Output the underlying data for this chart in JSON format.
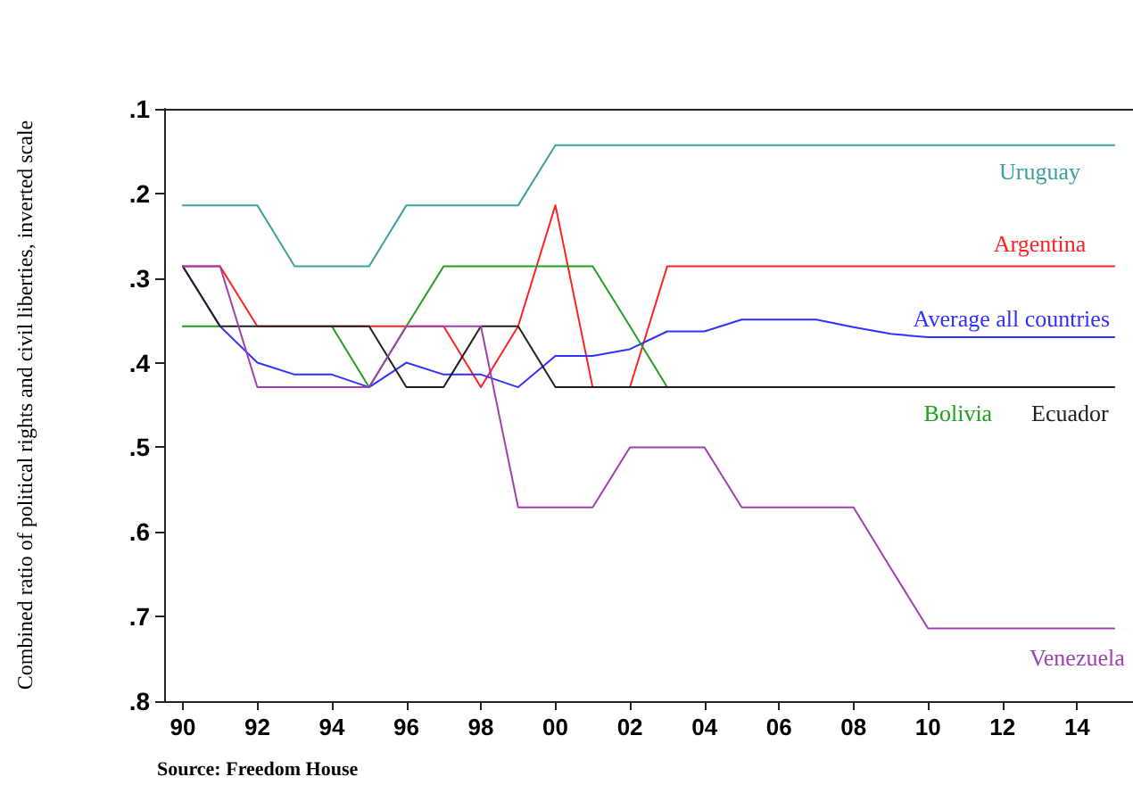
{
  "chart_data": {
    "type": "line",
    "ylabel": "Combined ratio of political rights and civil liberties, inverted scale",
    "annotations": [
      "Source: Freedom House"
    ],
    "x": [
      1990,
      1991,
      1992,
      1993,
      1994,
      1995,
      1996,
      1997,
      1998,
      1999,
      2000,
      2001,
      2002,
      2003,
      2004,
      2005,
      2006,
      2007,
      2008,
      2009,
      2010,
      2011,
      2012,
      2013,
      2014,
      2015
    ],
    "xlim": [
      1989.5,
      2015.5
    ],
    "xticks": [
      {
        "value": 1990,
        "label": "90"
      },
      {
        "value": 1992,
        "label": "92"
      },
      {
        "value": 1994,
        "label": "94"
      },
      {
        "value": 1996,
        "label": "96"
      },
      {
        "value": 1998,
        "label": "98"
      },
      {
        "value": 2000,
        "label": "00"
      },
      {
        "value": 2002,
        "label": "02"
      },
      {
        "value": 2004,
        "label": "04"
      },
      {
        "value": 2006,
        "label": "06"
      },
      {
        "value": 2008,
        "label": "08"
      },
      {
        "value": 2010,
        "label": "10"
      },
      {
        "value": 2012,
        "label": "12"
      },
      {
        "value": 2014,
        "label": "14"
      }
    ],
    "ylim": [
      0.8,
      0.1
    ],
    "yticks": [
      {
        "value": 0.1,
        "label": ".1"
      },
      {
        "value": 0.2,
        "label": ".2"
      },
      {
        "value": 0.3,
        "label": ".3"
      },
      {
        "value": 0.4,
        "label": ".4"
      },
      {
        "value": 0.5,
        "label": ".5"
      },
      {
        "value": 0.6,
        "label": ".6"
      },
      {
        "value": 0.7,
        "label": ".7"
      },
      {
        "value": 0.8,
        "label": ".8"
      }
    ],
    "grid": false,
    "legend": false,
    "marker": "none",
    "line_style": "solid",
    "series": [
      {
        "name": "Uruguay",
        "color": "#3aa0a0",
        "values": [
          0.214,
          0.214,
          0.214,
          0.286,
          0.286,
          0.286,
          0.214,
          0.214,
          0.214,
          0.214,
          0.143,
          0.143,
          0.143,
          0.143,
          0.143,
          0.143,
          0.143,
          0.143,
          0.143,
          0.143,
          0.143,
          0.143,
          0.143,
          0.143,
          0.143,
          0.143
        ]
      },
      {
        "name": "Argentina",
        "color": "#ff2020",
        "values": [
          0.286,
          0.286,
          0.357,
          0.357,
          0.357,
          0.357,
          0.357,
          0.357,
          0.429,
          0.357,
          0.214,
          0.429,
          0.429,
          0.286,
          0.286,
          0.286,
          0.286,
          0.286,
          0.286,
          0.286,
          0.286,
          0.286,
          0.286,
          0.286,
          0.286,
          0.286
        ]
      },
      {
        "name": "Average all countries",
        "color": "#3030ff",
        "values": [
          0.286,
          0.357,
          0.4,
          0.414,
          0.414,
          0.429,
          0.4,
          0.414,
          0.414,
          0.429,
          0.392,
          0.392,
          0.384,
          0.363,
          0.363,
          0.349,
          0.349,
          0.349,
          0.358,
          0.366,
          0.37,
          0.37,
          0.37,
          0.37,
          0.37,
          0.37
        ]
      },
      {
        "name": "Bolivia",
        "color": "#20a020",
        "values": [
          0.357,
          0.357,
          null,
          null,
          0.357,
          0.429,
          0.357,
          0.286,
          0.286,
          0.286,
          0.286,
          0.286,
          0.357,
          0.429,
          null,
          null,
          null,
          null,
          null,
          null,
          null,
          null,
          null,
          null,
          null,
          null
        ]
      },
      {
        "name": "Ecuador",
        "color": "#202020",
        "values": [
          0.286,
          0.357,
          0.357,
          0.357,
          0.357,
          0.357,
          0.429,
          0.429,
          0.357,
          0.357,
          0.429,
          0.429,
          0.429,
          0.429,
          0.429,
          0.429,
          0.429,
          0.429,
          0.429,
          0.429,
          0.429,
          0.429,
          0.429,
          0.429,
          0.429,
          0.429
        ]
      },
      {
        "name": "Venezuela",
        "color": "#a040b0",
        "values": [
          0.286,
          0.286,
          0.429,
          0.429,
          0.429,
          0.429,
          0.357,
          0.357,
          0.357,
          0.571,
          0.571,
          0.571,
          0.5,
          0.5,
          0.5,
          0.571,
          0.571,
          0.571,
          0.571,
          0.643,
          0.714,
          0.714,
          0.714,
          0.714,
          0.714,
          0.714
        ]
      }
    ]
  }
}
